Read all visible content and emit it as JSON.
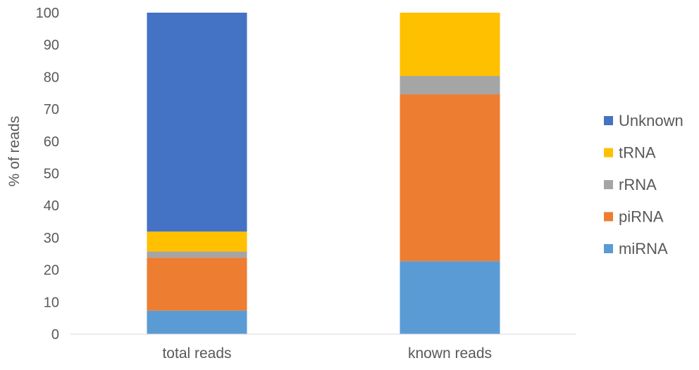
{
  "chart_data": {
    "type": "bar",
    "stacked": true,
    "title": "",
    "xlabel": "",
    "ylabel": "% of reads",
    "ylim": [
      0,
      100
    ],
    "yticks": [
      0,
      10,
      20,
      30,
      40,
      50,
      60,
      70,
      80,
      90,
      100
    ],
    "categories": [
      "total reads",
      "known reads"
    ],
    "series": [
      {
        "name": "miRNA",
        "color": "#5B9BD5",
        "values": [
          7.3,
          22.7
        ]
      },
      {
        "name": "piRNA",
        "color": "#ED7D31",
        "values": [
          16.5,
          51.9
        ]
      },
      {
        "name": "rRNA",
        "color": "#A5A5A5",
        "values": [
          1.9,
          5.7
        ]
      },
      {
        "name": "tRNA",
        "color": "#FFC000",
        "values": [
          6.2,
          19.7
        ]
      },
      {
        "name": "Unknown",
        "color": "#4472C4",
        "values": [
          68.1,
          0
        ]
      }
    ],
    "legend_position": "right",
    "legend_order": [
      "Unknown",
      "tRNA",
      "rRNA",
      "piRNA",
      "miRNA"
    ],
    "grid": false
  }
}
